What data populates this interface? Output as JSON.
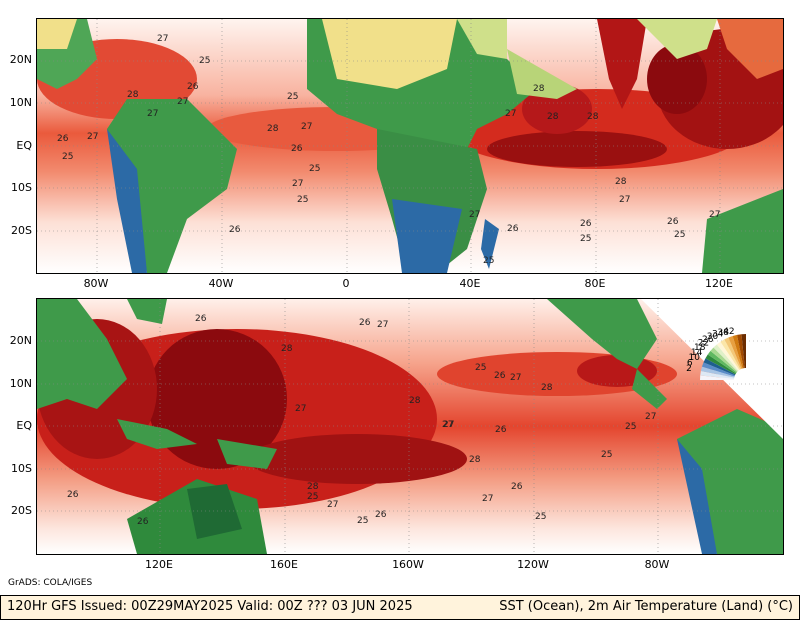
{
  "footer": {
    "left": "120Hr GFS Issued: 00Z29MAY2025 Valid: 00Z ??? 03 JUN 2025",
    "right": "SST (Ocean), 2m Air Temperature (Land) (°C)"
  },
  "credit": "GrADS: COLA/IGES",
  "top_panel": {
    "x_ticks": [
      "80W",
      "40W",
      "0",
      "40E",
      "80E",
      "120E"
    ],
    "y_ticks": [
      "20N",
      "10N",
      "EQ",
      "10S",
      "20S"
    ]
  },
  "bottom_panel": {
    "x_ticks": [
      "120E",
      "160E",
      "160W",
      "120W",
      "80W"
    ],
    "y_ticks": [
      "20N",
      "10N",
      "EQ",
      "10S",
      "20S"
    ]
  },
  "colorbar": {
    "labels": [
      "42",
      "38",
      "34",
      "30",
      "26",
      "22",
      "18",
      "14",
      "10",
      "6",
      "2"
    ],
    "colors": [
      "#6b2c00",
      "#a14a00",
      "#d07a10",
      "#e8a040",
      "#f3c878",
      "#fbe6a8",
      "#fff6d8",
      "#e0f0c8",
      "#a8d890",
      "#60b860",
      "#2f8a3c",
      "#1e5f8e",
      "#5a8cc8",
      "#a8c4e4",
      "#dde8f4",
      "#f4f4fa"
    ]
  },
  "contour_labels_top": [
    "27",
    "25",
    "26",
    "28",
    "25",
    "27",
    "25",
    "26",
    "27",
    "25",
    "28",
    "28",
    "27",
    "28",
    "27",
    "27",
    "28",
    "27",
    "26",
    "25",
    "26",
    "27",
    "25",
    "26",
    "25",
    "27",
    "28",
    "27",
    "26",
    "25",
    "26"
  ],
  "contour_labels_bottom": [
    "26",
    "27",
    "26",
    "28",
    "27",
    "25",
    "27",
    "26",
    "28",
    "28",
    "27",
    "26",
    "25",
    "25",
    "27",
    "28",
    "26",
    "27",
    "25",
    "26",
    "28",
    "27",
    "26",
    "25",
    "27",
    "26",
    "25"
  ],
  "palette": {
    "sst_cool": "#fde8e0",
    "sst_mid": "#f07a5a",
    "sst_warm": "#d92a1c",
    "sst_hot": "#8e0a10",
    "land_green": "#3f9a4a",
    "land_dark": "#1f6a34",
    "land_yellow": "#f4e48a",
    "land_blue": "#2c6aa6"
  }
}
